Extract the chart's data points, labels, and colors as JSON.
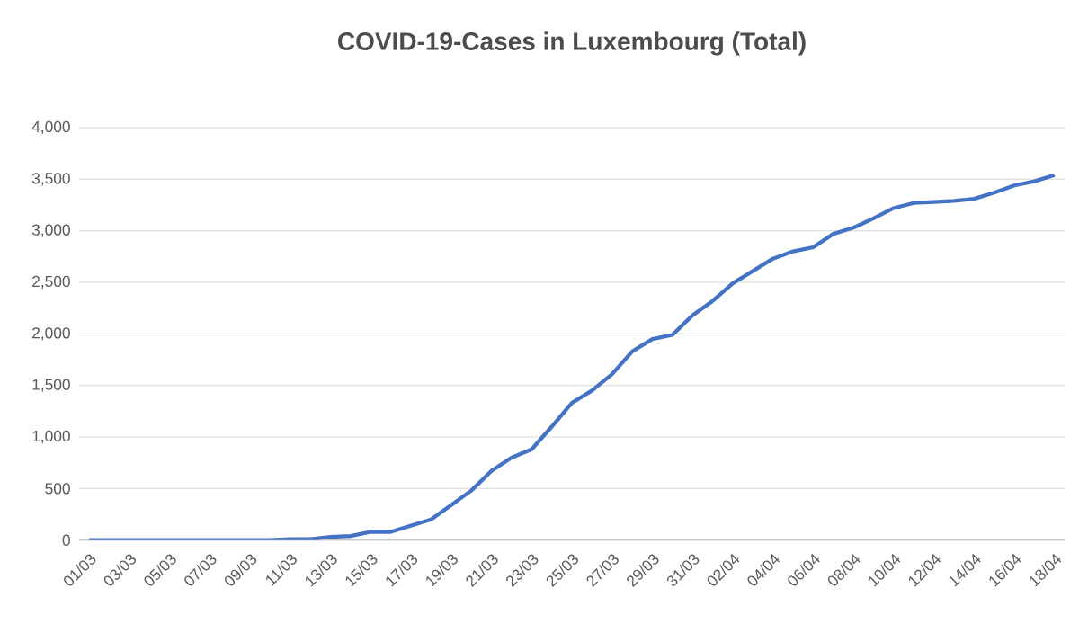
{
  "chart_data": {
    "type": "line",
    "title": "COVID-19-Cases in Luxembourg (Total)",
    "categories": [
      "01/03",
      null,
      "03/03",
      null,
      "05/03",
      null,
      "07/03",
      null,
      "09/03",
      null,
      "11/03",
      null,
      "13/03",
      null,
      "15/03",
      null,
      "17/03",
      null,
      "19/03",
      null,
      "21/03",
      null,
      "23/03",
      null,
      "25/03",
      null,
      "27/03",
      null,
      "29/03",
      null,
      "31/03",
      null,
      "02/04",
      null,
      "04/04",
      null,
      "06/04",
      null,
      "08/04",
      null,
      "10/04",
      null,
      "12/04",
      null,
      "14/04",
      null,
      "16/04",
      null,
      "18/04"
    ],
    "series": [
      {
        "color": "#4472c4",
        "values": [
          0,
          0,
          0,
          0,
          0,
          0,
          0,
          0,
          0,
          0,
          10,
          10,
          30,
          40,
          80,
          80,
          140,
          200,
          340,
          480,
          670,
          800,
          880,
          1100,
          1330,
          1450,
          1610,
          1830,
          1950,
          1990,
          2180,
          2320,
          2490,
          2610,
          2730,
          2800,
          2840,
          2970,
          3030,
          3120,
          3220,
          3270,
          3280,
          3290,
          3310,
          3370,
          3440,
          3480,
          3540
        ]
      }
    ],
    "ylim": [
      0,
      4000
    ],
    "yticks": [
      0,
      {
        "value": 500,
        "label": "500"
      },
      {
        "value": 1000,
        "label": "1,000"
      },
      {
        "value": 1500,
        "label": "1,500"
      },
      {
        "value": 2000,
        "label": "2,000"
      },
      {
        "value": 2500,
        "label": "2,500"
      },
      {
        "value": 3000,
        "label": "3,000"
      },
      {
        "value": 3500,
        "label": "3,500"
      },
      {
        "value": 4000,
        "label": "4,000"
      }
    ],
    "grid": "y",
    "marker": "none",
    "line_style": "solid"
  }
}
